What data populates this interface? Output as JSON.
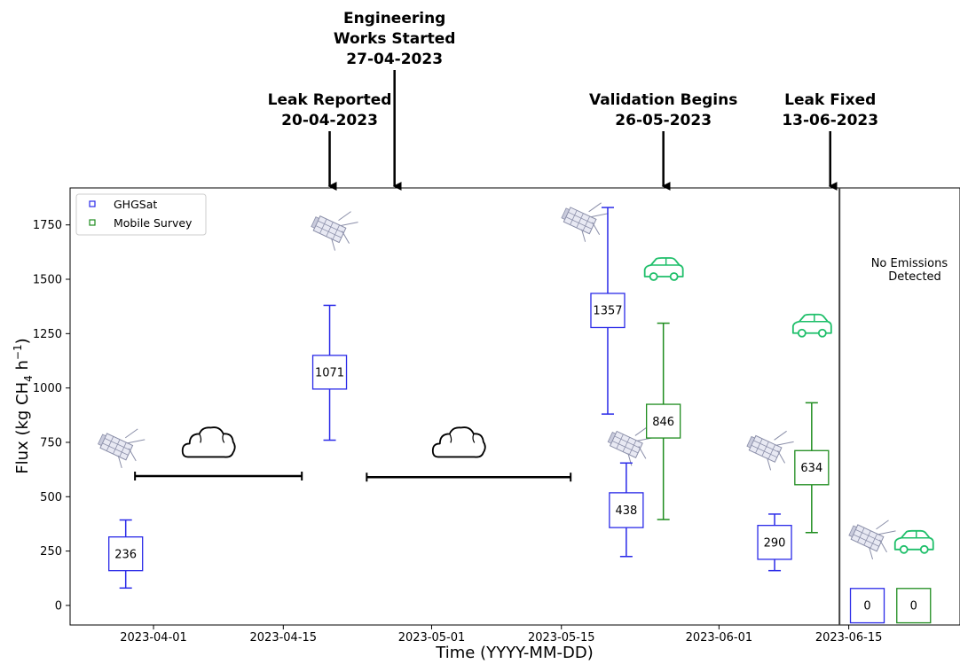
{
  "chart_data": {
    "type": "box",
    "xlabel": "Time (YYYY-MM-DD)",
    "ylabel": "Flux (kg CH",
    "ylabel_sub": "4",
    "ylabel_tail": " h",
    "ylabel_sup": "−1",
    "ylabel_close": ")",
    "ylim": [
      -90,
      1920
    ],
    "xlim": [
      "2023-03-23",
      "2023-06-27"
    ],
    "x_ticks": [
      "2023-04-01",
      "2023-04-15",
      "2023-05-01",
      "2023-05-15",
      "2023-06-01",
      "2023-06-15"
    ],
    "y_ticks": [
      0,
      250,
      500,
      750,
      1000,
      1250,
      1500,
      1750
    ],
    "legend": {
      "placement": "top-left",
      "entries": [
        {
          "label": "GHGSat",
          "color": "#2a2ae8"
        },
        {
          "label": "Mobile Survey",
          "color": "#1e8c1e"
        }
      ]
    },
    "series": [
      {
        "name": "GHGSat",
        "color": "#2a2ae8",
        "boxes": [
          {
            "date": "2023-03-29",
            "median": 236,
            "q1": 160,
            "q3": 315,
            "whisker_low": 80,
            "whisker_high": 393,
            "label": "236"
          },
          {
            "date": "2023-04-20",
            "median": 1071,
            "q1": 995,
            "q3": 1150,
            "whisker_low": 760,
            "whisker_high": 1380,
            "label": "1071"
          },
          {
            "date": "2023-05-20",
            "median": 1357,
            "q1": 1278,
            "q3": 1435,
            "whisker_low": 880,
            "whisker_high": 1830,
            "label": "1357"
          },
          {
            "date": "2023-05-22",
            "median": 438,
            "q1": 358,
            "q3": 518,
            "whisker_low": 225,
            "whisker_high": 655,
            "label": "438"
          },
          {
            "date": "2023-06-07",
            "median": 290,
            "q1": 212,
            "q3": 368,
            "whisker_low": 160,
            "whisker_high": 420,
            "label": "290"
          },
          {
            "date": "2023-06-17",
            "median": 0,
            "q1": -80,
            "q3": 78,
            "whisker_low": null,
            "whisker_high": null,
            "label": "0"
          }
        ]
      },
      {
        "name": "Mobile Survey",
        "color": "#1e8c1e",
        "boxes": [
          {
            "date": "2023-05-26",
            "median": 846,
            "q1": 770,
            "q3": 925,
            "whisker_low": 395,
            "whisker_high": 1298,
            "label": "846"
          },
          {
            "date": "2023-06-11",
            "median": 634,
            "q1": 555,
            "q3": 712,
            "whisker_low": 335,
            "whisker_high": 932,
            "label": "634"
          },
          {
            "date": "2023-06-22",
            "median": 0,
            "q1": -80,
            "q3": 78,
            "whisker_low": null,
            "whisker_high": null,
            "label": "0"
          }
        ]
      }
    ],
    "cloud_gaps": [
      {
        "start": "2023-03-30",
        "end": "2023-04-17",
        "y": 595
      },
      {
        "start": "2023-04-24",
        "end": "2023-05-16",
        "y": 590
      }
    ],
    "vertical_line": {
      "date": "2023-06-14"
    },
    "annotations": [
      {
        "lines": [
          "Leak Reported",
          "20-04-2023"
        ],
        "date": "2023-04-20"
      },
      {
        "lines": [
          "Engineering",
          "Works Started",
          "27-04-2023"
        ],
        "date": "2023-04-27"
      },
      {
        "lines": [
          "Validation Begins",
          "26-05-2023"
        ],
        "date": "2023-05-26"
      },
      {
        "lines": [
          "Leak Fixed",
          "13-06-2023"
        ],
        "date": "2023-06-13"
      }
    ],
    "note": [
      "No Emissions",
      "Detected"
    ],
    "icons": [
      {
        "kind": "satellite-icon",
        "date": "2023-03-28",
        "y": 730
      },
      {
        "kind": "satellite-icon",
        "date": "2023-04-20",
        "y": 1730
      },
      {
        "kind": "satellite-icon",
        "date": "2023-05-17",
        "y": 1770
      },
      {
        "kind": "satellite-icon",
        "date": "2023-05-22",
        "y": 740
      },
      {
        "kind": "satellite-icon",
        "date": "2023-06-06",
        "y": 720
      },
      {
        "kind": "satellite-icon",
        "date": "2023-06-17",
        "y": 310
      },
      {
        "kind": "car-icon",
        "date": "2023-05-26",
        "y": 1545
      },
      {
        "kind": "car-icon",
        "date": "2023-06-11",
        "y": 1285
      },
      {
        "kind": "car-icon",
        "date": "2023-06-22",
        "y": 290
      },
      {
        "kind": "cloud-icon",
        "date": "2023-04-07",
        "y": 740
      },
      {
        "kind": "cloud-icon",
        "date": "2023-05-04",
        "y": 740
      }
    ]
  }
}
